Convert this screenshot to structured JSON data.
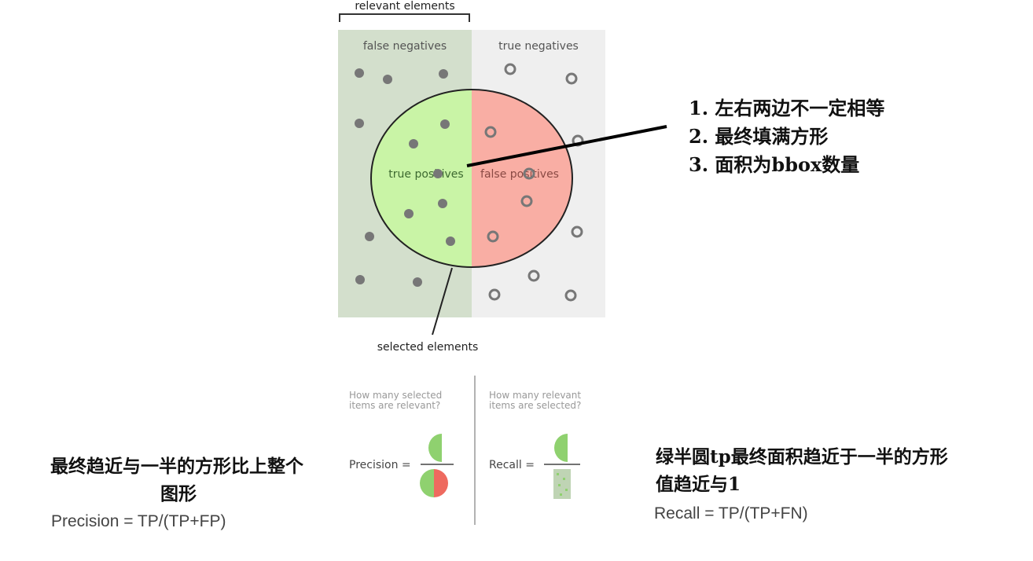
{
  "diagram": {
    "relevant_label": "relevant elements",
    "false_negatives_label": "false negatives",
    "true_negatives_label": "true negatives",
    "true_positives_label": "true positives",
    "false_positives_label": "false positives",
    "selected_label": "selected elements",
    "colors": {
      "false_negatives_bg": "#d3dfcc",
      "true_negatives_bg": "#efefef",
      "true_positives_fill": "#c9f4a6",
      "false_positives_fill": "#f9aea4",
      "dot": "#777777"
    },
    "precision_question_line1": "How many selected",
    "precision_question_line2": "items are relevant?",
    "recall_question_line1": "How many relevant",
    "recall_question_line2": "items are selected?",
    "precision_label": "Precision =",
    "recall_label": "Recall ="
  },
  "notes": {
    "right_line1": "1. 左右两边不一定相等",
    "right_line2": "2. 最终填满方形",
    "right_line3": "3. 面积为bbox数量",
    "left_line1": "最终趋近与一半的方形比上整个",
    "left_line2": "图形",
    "recall_line1": "绿半圆tp最终面积趋近于一半的方形",
    "recall_line2": "值趋近与1"
  },
  "formulas": {
    "precision": "Precision = TP/(TP+FP)",
    "recall": "Recall = TP/(TP+FN)"
  }
}
